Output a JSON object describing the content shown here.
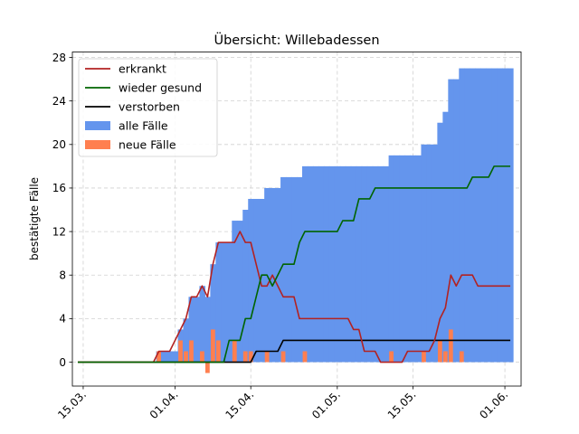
{
  "chart_data": {
    "type": "line",
    "title": "Übersicht: Willebadessen",
    "ylabel": "bestätigte Fälle",
    "xlabel": "",
    "x_range": [
      "2020-03-13",
      "2020-06-04"
    ],
    "ylim": [
      -2.2,
      28.5
    ],
    "y_ticks": [
      0,
      4,
      8,
      12,
      16,
      20,
      24,
      28
    ],
    "x_ticks": [
      {
        "date": "2020-03-15",
        "label": "15.03."
      },
      {
        "date": "2020-04-01",
        "label": "01.04."
      },
      {
        "date": "2020-04-15",
        "label": "15.04."
      },
      {
        "date": "2020-05-01",
        "label": "01.05."
      },
      {
        "date": "2020-05-15",
        "label": "15.05."
      },
      {
        "date": "2020-06-01",
        "label": "01.06."
      }
    ],
    "grid": true,
    "legend_position": "top-left",
    "colors": {
      "erkrankt": "#b22222",
      "wieder_gesund": "#006400",
      "verstorben": "#000000",
      "alle_faelle": "#6495ed",
      "neue_faelle": "#ff7f50"
    },
    "legend": [
      {
        "label": "erkrankt",
        "kind": "line",
        "color": "#b22222"
      },
      {
        "label": "wieder gesund",
        "kind": "line",
        "color": "#006400"
      },
      {
        "label": "verstorben",
        "kind": "line",
        "color": "#000000"
      },
      {
        "label": "alle Fälle",
        "kind": "patch",
        "color": "#6495ed"
      },
      {
        "label": "neue Fälle",
        "kind": "patch",
        "color": "#ff7f50"
      }
    ],
    "series": [
      {
        "name": "alle Fälle",
        "kind": "bar",
        "color": "#6495ed",
        "points": [
          [
            "2020-03-29",
            1
          ],
          [
            "2020-03-30",
            1
          ],
          [
            "2020-03-31",
            1
          ],
          [
            "2020-04-01",
            1
          ],
          [
            "2020-04-02",
            3
          ],
          [
            "2020-04-03",
            4
          ],
          [
            "2020-04-04",
            6
          ],
          [
            "2020-04-05",
            6
          ],
          [
            "2020-04-06",
            7
          ],
          [
            "2020-04-07",
            6
          ],
          [
            "2020-04-08",
            9
          ],
          [
            "2020-04-09",
            11
          ],
          [
            "2020-04-10",
            11
          ],
          [
            "2020-04-11",
            11
          ],
          [
            "2020-04-12",
            13
          ],
          [
            "2020-04-13",
            13
          ],
          [
            "2020-04-14",
            14
          ],
          [
            "2020-04-15",
            15
          ],
          [
            "2020-04-16",
            15
          ],
          [
            "2020-04-17",
            15
          ],
          [
            "2020-04-18",
            16
          ],
          [
            "2020-04-19",
            16
          ],
          [
            "2020-04-20",
            16
          ],
          [
            "2020-04-21",
            17
          ],
          [
            "2020-04-22",
            17
          ],
          [
            "2020-04-23",
            17
          ],
          [
            "2020-04-24",
            17
          ],
          [
            "2020-04-25",
            18
          ],
          [
            "2020-04-26",
            18
          ],
          [
            "2020-04-27",
            18
          ],
          [
            "2020-04-28",
            18
          ],
          [
            "2020-04-29",
            18
          ],
          [
            "2020-04-30",
            18
          ],
          [
            "2020-05-01",
            18
          ],
          [
            "2020-05-02",
            18
          ],
          [
            "2020-05-03",
            18
          ],
          [
            "2020-05-04",
            18
          ],
          [
            "2020-05-05",
            18
          ],
          [
            "2020-05-06",
            18
          ],
          [
            "2020-05-07",
            18
          ],
          [
            "2020-05-08",
            18
          ],
          [
            "2020-05-09",
            18
          ],
          [
            "2020-05-10",
            18
          ],
          [
            "2020-05-11",
            19
          ],
          [
            "2020-05-12",
            19
          ],
          [
            "2020-05-13",
            19
          ],
          [
            "2020-05-14",
            19
          ],
          [
            "2020-05-15",
            19
          ],
          [
            "2020-05-16",
            19
          ],
          [
            "2020-05-17",
            20
          ],
          [
            "2020-05-18",
            20
          ],
          [
            "2020-05-19",
            20
          ],
          [
            "2020-05-20",
            22
          ],
          [
            "2020-05-21",
            23
          ],
          [
            "2020-05-22",
            26
          ],
          [
            "2020-05-23",
            26
          ],
          [
            "2020-05-24",
            27
          ],
          [
            "2020-05-25",
            27
          ],
          [
            "2020-05-26",
            27
          ],
          [
            "2020-05-27",
            27
          ],
          [
            "2020-05-28",
            27
          ],
          [
            "2020-05-29",
            27
          ],
          [
            "2020-05-30",
            27
          ],
          [
            "2020-05-31",
            27
          ],
          [
            "2020-06-01",
            27
          ],
          [
            "2020-06-02",
            27
          ]
        ]
      },
      {
        "name": "neue Fälle",
        "kind": "bar",
        "color": "#ff7f50",
        "points": [
          [
            "2020-03-29",
            1
          ],
          [
            "2020-04-02",
            2
          ],
          [
            "2020-04-03",
            1
          ],
          [
            "2020-04-04",
            2
          ],
          [
            "2020-04-06",
            1
          ],
          [
            "2020-04-07",
            -1
          ],
          [
            "2020-04-08",
            3
          ],
          [
            "2020-04-09",
            2
          ],
          [
            "2020-04-12",
            2
          ],
          [
            "2020-04-14",
            1
          ],
          [
            "2020-04-15",
            1
          ],
          [
            "2020-04-18",
            1
          ],
          [
            "2020-04-21",
            1
          ],
          [
            "2020-04-25",
            1
          ],
          [
            "2020-05-11",
            1
          ],
          [
            "2020-05-17",
            1
          ],
          [
            "2020-05-20",
            2
          ],
          [
            "2020-05-21",
            1
          ],
          [
            "2020-05-22",
            3
          ],
          [
            "2020-05-24",
            1
          ]
        ]
      },
      {
        "name": "erkrankt",
        "kind": "line",
        "color": "#b22222",
        "points": [
          [
            "2020-03-14",
            0
          ],
          [
            "2020-03-28",
            0
          ],
          [
            "2020-03-29",
            1
          ],
          [
            "2020-03-31",
            1
          ],
          [
            "2020-04-02",
            3
          ],
          [
            "2020-04-03",
            4
          ],
          [
            "2020-04-04",
            6
          ],
          [
            "2020-04-05",
            6
          ],
          [
            "2020-04-06",
            7
          ],
          [
            "2020-04-07",
            6
          ],
          [
            "2020-04-08",
            9
          ],
          [
            "2020-04-09",
            11
          ],
          [
            "2020-04-12",
            11
          ],
          [
            "2020-04-13",
            12
          ],
          [
            "2020-04-14",
            11
          ],
          [
            "2020-04-15",
            11
          ],
          [
            "2020-04-16",
            9
          ],
          [
            "2020-04-17",
            7
          ],
          [
            "2020-04-18",
            7
          ],
          [
            "2020-04-19",
            8
          ],
          [
            "2020-04-20",
            7
          ],
          [
            "2020-04-21",
            6
          ],
          [
            "2020-04-23",
            6
          ],
          [
            "2020-04-24",
            4
          ],
          [
            "2020-05-03",
            4
          ],
          [
            "2020-05-04",
            3
          ],
          [
            "2020-05-05",
            3
          ],
          [
            "2020-05-06",
            1
          ],
          [
            "2020-05-08",
            1
          ],
          [
            "2020-05-09",
            0
          ],
          [
            "2020-05-13",
            0
          ],
          [
            "2020-05-14",
            1
          ],
          [
            "2020-05-18",
            1
          ],
          [
            "2020-05-19",
            2
          ],
          [
            "2020-05-20",
            4
          ],
          [
            "2020-05-21",
            5
          ],
          [
            "2020-05-22",
            8
          ],
          [
            "2020-05-23",
            7
          ],
          [
            "2020-05-24",
            8
          ],
          [
            "2020-05-26",
            8
          ],
          [
            "2020-05-27",
            7
          ],
          [
            "2020-06-02",
            7
          ]
        ]
      },
      {
        "name": "wieder gesund",
        "kind": "line",
        "color": "#006400",
        "points": [
          [
            "2020-03-14",
            0
          ],
          [
            "2020-04-10",
            0
          ],
          [
            "2020-04-11",
            2
          ],
          [
            "2020-04-13",
            2
          ],
          [
            "2020-04-14",
            4
          ],
          [
            "2020-04-15",
            4
          ],
          [
            "2020-04-16",
            6
          ],
          [
            "2020-04-17",
            8
          ],
          [
            "2020-04-18",
            8
          ],
          [
            "2020-04-19",
            7
          ],
          [
            "2020-04-20",
            8
          ],
          [
            "2020-04-21",
            9
          ],
          [
            "2020-04-23",
            9
          ],
          [
            "2020-04-24",
            11
          ],
          [
            "2020-04-25",
            12
          ],
          [
            "2020-05-01",
            12
          ],
          [
            "2020-05-02",
            13
          ],
          [
            "2020-05-04",
            13
          ],
          [
            "2020-05-05",
            15
          ],
          [
            "2020-05-07",
            15
          ],
          [
            "2020-05-08",
            16
          ],
          [
            "2020-05-25",
            16
          ],
          [
            "2020-05-26",
            17
          ],
          [
            "2020-05-29",
            17
          ],
          [
            "2020-05-30",
            18
          ],
          [
            "2020-06-02",
            18
          ]
        ]
      },
      {
        "name": "verstorben",
        "kind": "line",
        "color": "#000000",
        "points": [
          [
            "2020-03-14",
            0
          ],
          [
            "2020-04-15",
            0
          ],
          [
            "2020-04-16",
            1
          ],
          [
            "2020-04-20",
            1
          ],
          [
            "2020-04-21",
            2
          ],
          [
            "2020-06-02",
            2
          ]
        ]
      }
    ]
  }
}
